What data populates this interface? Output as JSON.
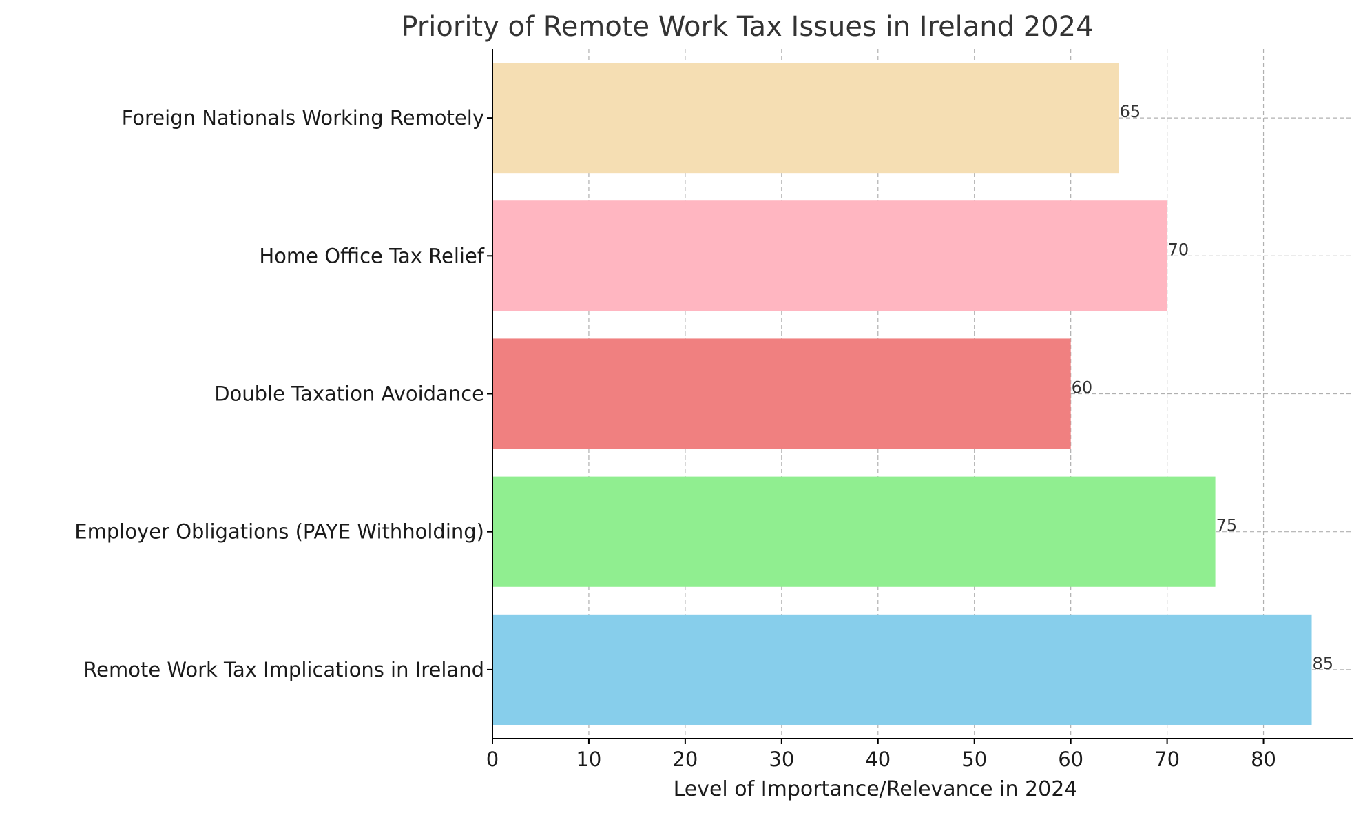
{
  "chart_data": {
    "type": "bar",
    "orientation": "horizontal",
    "title": "Priority of Remote Work Tax Issues in Ireland 2024",
    "xlabel": "Level of Importance/Relevance in 2024",
    "ylabel": "",
    "xlim": [
      0,
      89.25
    ],
    "xticks": [
      0,
      10,
      20,
      30,
      40,
      50,
      60,
      70,
      80
    ],
    "grid": true,
    "categories": [
      "Remote Work Tax Implications in Ireland",
      "Employer Obligations (PAYE Withholding)",
      "Double Taxation Avoidance",
      "Home Office Tax Relief",
      "Foreign Nationals Working Remotely"
    ],
    "values": [
      85,
      75,
      60,
      70,
      65
    ],
    "colors": [
      "#87ceeb",
      "#90ee90",
      "#f08080",
      "#ffb6c1",
      "#f5deb3"
    ]
  }
}
